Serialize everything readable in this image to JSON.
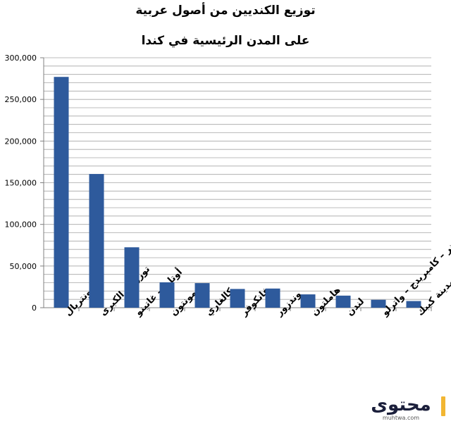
{
  "chart_data": {
    "type": "bar",
    "title": "توزيع الكنديين من أصول عربية",
    "subtitle": "على المدن الرئيسية في كندا",
    "categories": [
      "مونتريال",
      "تورونتو الكبرى",
      "أوتاوا – غاتينو",
      "إدمونتون",
      "كالغاري",
      "فانكوفر",
      "وندزور",
      "هاملتون",
      "لندن",
      "كيتشنر – كامبريدج – واترلو",
      "مدينة كيبك"
    ],
    "values": [
      277000,
      160500,
      72500,
      30500,
      29500,
      22500,
      23000,
      16000,
      14500,
      9500,
      8000
    ],
    "ylim": [
      0,
      300000
    ],
    "yticks": [
      "0",
      "50,000",
      "100,000",
      "150,000",
      "200,000",
      "250,000",
      "300,000"
    ],
    "bar_color": "#2e5a9c",
    "grid": true
  },
  "logo": {
    "text": "محتوى",
    "url": "muhtwa.com"
  }
}
